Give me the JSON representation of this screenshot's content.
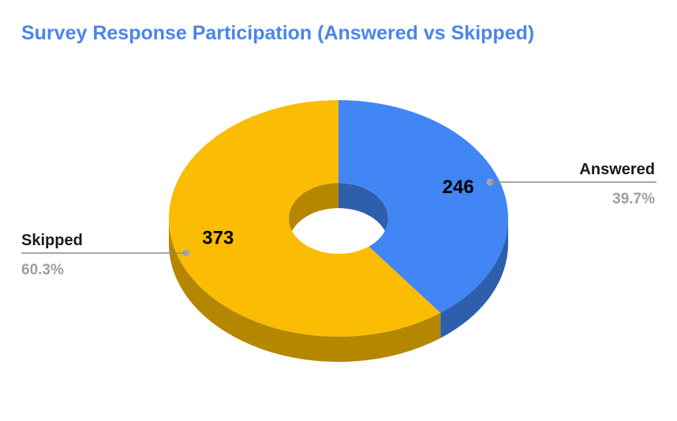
{
  "chart_data": {
    "type": "pie",
    "title": "Survey Response Participation (Answered vs Skipped)",
    "donut": true,
    "three_d": true,
    "slices": [
      {
        "name": "Answered",
        "value": 246,
        "percent_label": "39.7%",
        "color": "#4285f4",
        "side_color": "#2e5fad"
      },
      {
        "name": "Skipped",
        "value": 373,
        "percent_label": "60.3%",
        "color": "#fbbc04",
        "side_color": "#b58700"
      }
    ],
    "legend": "labels beside slices"
  }
}
